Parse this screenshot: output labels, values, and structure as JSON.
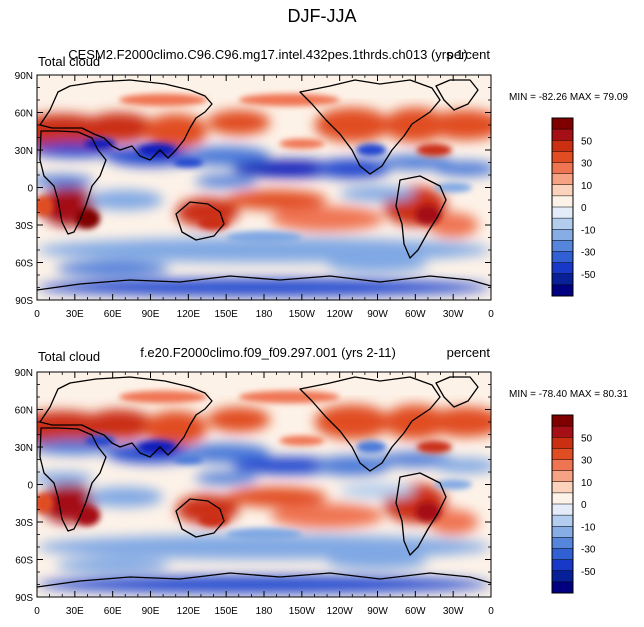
{
  "figure": {
    "title": "DJF-JJA"
  },
  "chart_data": [
    {
      "type": "heatmap",
      "subtitle_left": "Total cloud",
      "subtitle_center": "CESM2.F2000climo.C96.C96.mg17.intel.432pes.1thrds.ch013 (yrs 1)",
      "subtitle_right": "percent",
      "stats": "MIN = -82.26 MAX = 79.09",
      "min": -82.26,
      "max": 79.09,
      "x_tick_labels": [
        "0",
        "30E",
        "60E",
        "90E",
        "120E",
        "150E",
        "180",
        "150W",
        "120W",
        "90W",
        "60W",
        "30W",
        "0"
      ],
      "y_tick_labels": [
        "90N",
        "60N",
        "30N",
        "0",
        "30S",
        "60S",
        "90S"
      ],
      "xlim": [
        0,
        360
      ],
      "ylim": [
        -90,
        90
      ],
      "colorbar_levels": [
        -60,
        -50,
        -40,
        -30,
        -20,
        -10,
        -5,
        0,
        5,
        10,
        20,
        30,
        40,
        50,
        60
      ],
      "colorbar_labels": [
        "50",
        "30",
        "10",
        "0",
        "-10",
        "-30",
        "-50"
      ]
    },
    {
      "type": "heatmap",
      "subtitle_left": "Total cloud",
      "subtitle_center": "f.e20.F2000climo.f09_f09.297.001 (yrs 2-11)",
      "subtitle_right": "percent",
      "stats": "MIN = -78.40 MAX = 80.31",
      "min": -78.4,
      "max": 80.31,
      "x_tick_labels": [
        "0",
        "30E",
        "60E",
        "90E",
        "120E",
        "150E",
        "180",
        "150W",
        "120W",
        "90W",
        "60W",
        "30W",
        "0"
      ],
      "y_tick_labels": [
        "90N",
        "60N",
        "30N",
        "0",
        "30S",
        "60S",
        "90S"
      ],
      "xlim": [
        0,
        360
      ],
      "ylim": [
        -90,
        90
      ],
      "colorbar_levels": [
        -60,
        -50,
        -40,
        -30,
        -20,
        -10,
        -5,
        0,
        5,
        10,
        20,
        30,
        40,
        50,
        60
      ],
      "colorbar_labels": [
        "50",
        "30",
        "10",
        "0",
        "-10",
        "-30",
        "-50"
      ]
    }
  ],
  "palette": {
    "colorbar_colors": [
      "#800000",
      "#a50f15",
      "#cb2f12",
      "#e14d22",
      "#ef7552",
      "#f6a285",
      "#fbd3bd",
      "#fdf2e8",
      "#e3ecf8",
      "#b3cdee",
      "#86ade5",
      "#5686db",
      "#3060d3",
      "#1838c8",
      "#071f97",
      "#000080"
    ],
    "field_colors": [
      "#000080",
      "#0a1eb9",
      "#2346cf",
      "#4c7ad9",
      "#80a8e4",
      "#b3cdee",
      "#e3ecf8",
      "#fdf2e8",
      "#fbd3bd",
      "#f6a285",
      "#ef7552",
      "#e14d22",
      "#cb2f12",
      "#a50f15",
      "#800000"
    ],
    "outline": "#000000"
  }
}
